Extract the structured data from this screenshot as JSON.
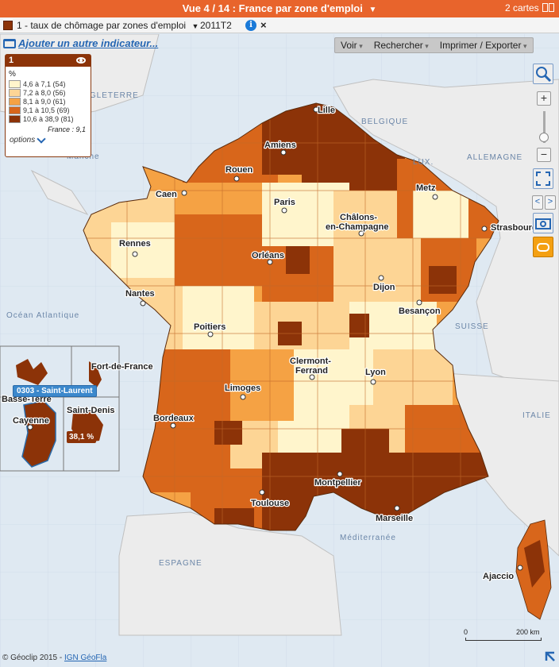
{
  "titlebar": {
    "title": "Vue 4 / 14 : France par zone d'emploi",
    "maps_count": "2 cartes"
  },
  "indicator_bar": {
    "label": "1 - taux de chômage par zones d'emploi",
    "period": "2011T2",
    "info_glyph": "i",
    "close_glyph": "×"
  },
  "add_indicator": "Ajouter un autre indicateur...",
  "toolbar": {
    "voir": "Voir",
    "rechercher": "Rechercher",
    "imprimer": "Imprimer / Exporter"
  },
  "legend": {
    "number": "1",
    "unit": "%",
    "classes": [
      {
        "label": "4,6 à 7,1 (54)",
        "color": "#fff5cc"
      },
      {
        "label": "7,2 à 8,0 (56)",
        "color": "#fdd595"
      },
      {
        "label": "8,1 à 9,0 (61)",
        "color": "#f5a244"
      },
      {
        "label": "9,1 à 10,5 (69)",
        "color": "#d8661b"
      },
      {
        "label": "10,6 à 38,9 (81)",
        "color": "#8c3308"
      }
    ],
    "france_value": "France : 9,1",
    "options": "options"
  },
  "map_labels": {
    "cities": [
      "Lille",
      "Amiens",
      "Rouen",
      "Caen",
      "Paris",
      "Metz",
      "Châlons-",
      "en-Champagne",
      "Strasbourg",
      "Rennes",
      "Orléans",
      "Nantes",
      "Dijon",
      "Besançon",
      "Poitiers",
      "Clermont-",
      "Ferrand",
      "Lyon",
      "Limoges",
      "Bordeaux",
      "Montpellier",
      "Marseille",
      "Toulouse",
      "Ajaccio"
    ],
    "countries": [
      "ANGLETERRE",
      "BELGIQUE",
      "LUX.",
      "ALLEMAGNE",
      "SUISSE",
      "ITALIE",
      "ESPAGNE"
    ],
    "seas": [
      "Manche",
      "Océan Atlantique",
      "Méditerranée"
    ]
  },
  "dom_inset": {
    "labels": [
      "Basse-Terre",
      "Fort-de-France",
      "Cayenne",
      "Saint-Denis"
    ],
    "tooltip": "0303 - Saint-Laurent",
    "value": "38,1 %"
  },
  "scale": {
    "start": "0",
    "end": "200 km"
  },
  "footer": {
    "copyright": "© Géoclip 2015 - ",
    "source": "IGN GéoFla"
  },
  "colors": {
    "titlebar": "#e8642c",
    "sea": "#dfe9f2",
    "land_neighbors": "#ececec",
    "accent": "#2566b3"
  }
}
